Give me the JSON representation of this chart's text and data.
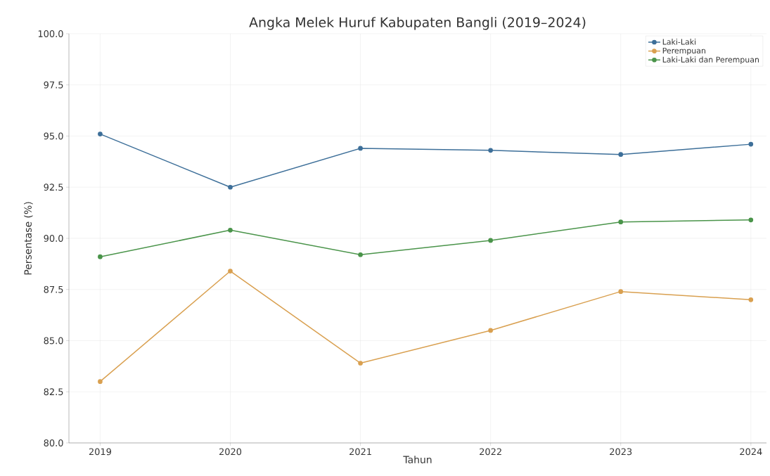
{
  "chart_data": {
    "type": "line",
    "title": "Angka Melek Huruf Kabupaten Bangli (2019–2024)",
    "xlabel": "Tahun",
    "ylabel": "Persentase (%)",
    "categories": [
      "2019",
      "2020",
      "2021",
      "2022",
      "2023",
      "2024"
    ],
    "series": [
      {
        "name": "Laki-Laki",
        "color": "#3d6f99",
        "values": [
          95.1,
          92.5,
          94.4,
          94.3,
          94.1,
          94.6
        ]
      },
      {
        "name": "Perempuan",
        "color": "#d9a050",
        "values": [
          83.0,
          88.4,
          83.9,
          85.5,
          87.4,
          87.0
        ]
      },
      {
        "name": "Laki-Laki dan Perempuan",
        "color": "#4a944a",
        "values": [
          89.1,
          90.4,
          89.2,
          89.9,
          90.8,
          90.9
        ]
      }
    ],
    "ylim": [
      80,
      100
    ],
    "yticks": [
      {
        "value": 80,
        "label": "80.0"
      },
      {
        "value": 82.5,
        "label": "82.5"
      },
      {
        "value": 85,
        "label": "85.0"
      },
      {
        "value": 87.5,
        "label": "87.5"
      },
      {
        "value": 90,
        "label": "90.0"
      },
      {
        "value": 92.5,
        "label": "92.5"
      },
      {
        "value": 95,
        "label": "95.0"
      },
      {
        "value": 97.5,
        "label": "97.5"
      },
      {
        "value": 100,
        "label": "100.0"
      }
    ],
    "grid": true,
    "legend": "top right",
    "marker": "circle",
    "line_style": "solid"
  }
}
